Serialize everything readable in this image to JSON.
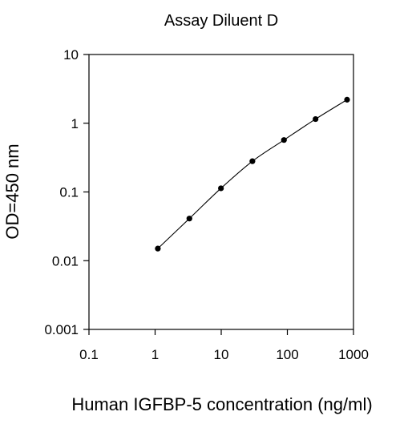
{
  "chart_data": {
    "type": "line",
    "title": "Assay Diluent D",
    "xlabel": "Human IGFBP-5 concentration (ng/ml)",
    "ylabel": "OD=450 nm",
    "xscale": "log",
    "yscale": "log",
    "xlim": [
      0.1,
      1000
    ],
    "ylim": [
      0.001,
      10
    ],
    "x_ticks": [
      "0.1",
      "1",
      "10",
      "100",
      "1000"
    ],
    "y_ticks": [
      "0.001",
      "0.01",
      "0.1",
      "1",
      "10"
    ],
    "grid": false,
    "legend": "none",
    "series": [
      {
        "x": [
          1.1,
          3.3,
          9.9,
          29.6,
          88.9,
          267,
          800
        ],
        "y": [
          0.015,
          0.041,
          0.113,
          0.28,
          0.57,
          1.15,
          2.2
        ]
      }
    ],
    "colors": {
      "line": "#000000",
      "marker": "#000000",
      "axis": "#000000"
    }
  }
}
